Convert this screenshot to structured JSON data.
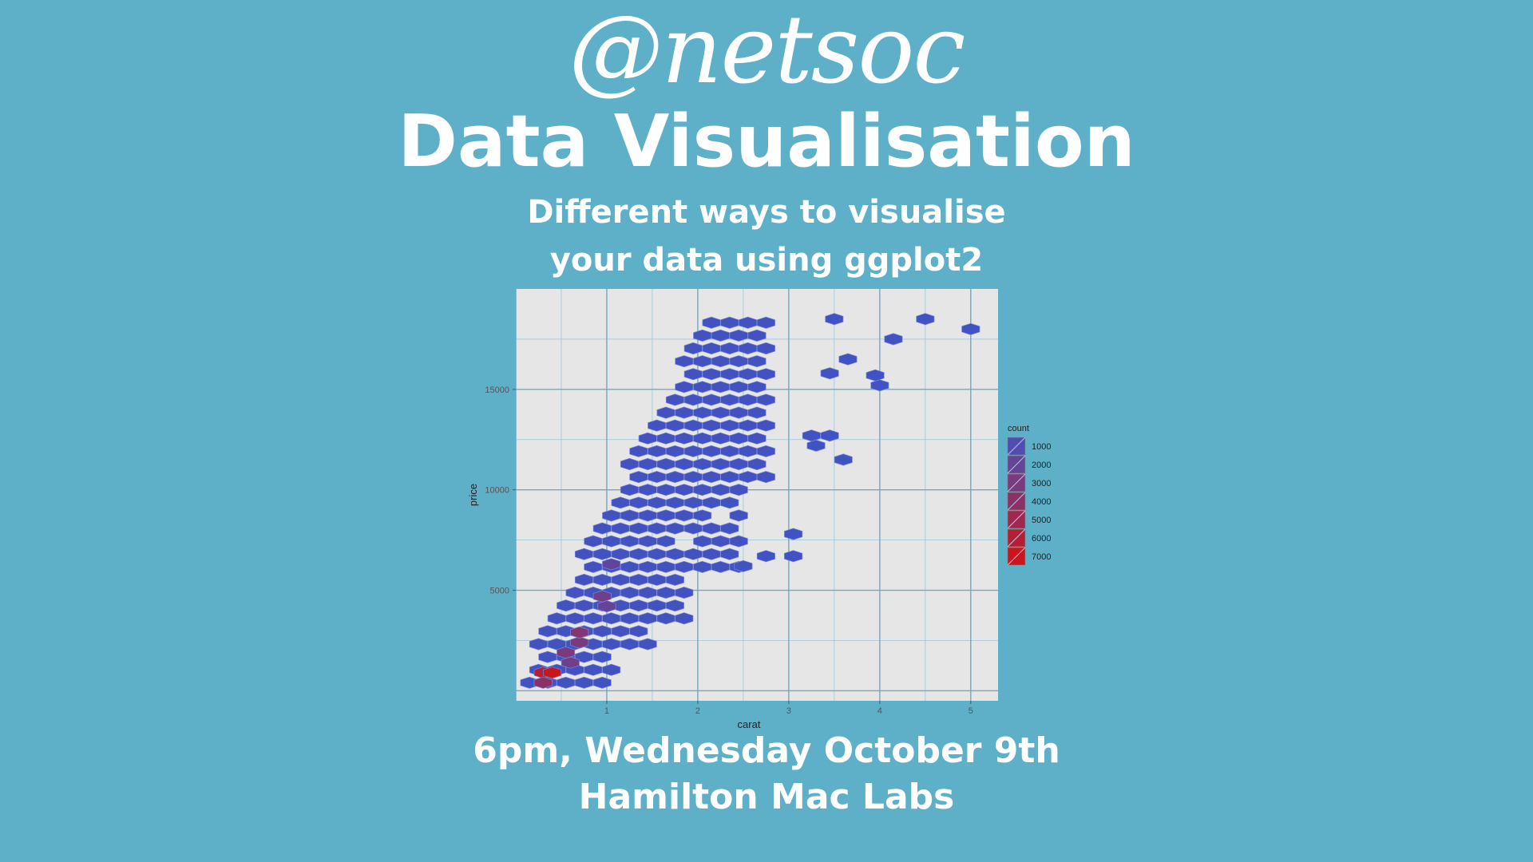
{
  "poster": {
    "logo": "@netsoc",
    "title": "Data Visualisation",
    "subtitle_line1": "Different ways to visualise",
    "subtitle_line2": "your data using ggplot2",
    "event_time": "6pm, Wednesday October 9th",
    "event_location": "Hamilton Mac Labs"
  },
  "colors": {
    "background": "#5eb0c8",
    "panel": "#e6e6e6",
    "low": "#3d55c8",
    "high": "#c8161b"
  },
  "chart_data": {
    "type": "heatmap",
    "subtype": "hexbin",
    "xlabel": "carat",
    "ylabel": "price",
    "xlim": [
      0,
      5.3
    ],
    "ylim": [
      -500,
      20000
    ],
    "xticks": [
      1,
      2,
      3,
      4,
      5
    ],
    "yticks": [
      5000,
      10000,
      15000
    ],
    "ytick_labels": [
      "5000",
      "10000",
      "15000"
    ],
    "grid": true,
    "legend": {
      "title": "count",
      "position": "right",
      "values": [
        1000,
        2000,
        3000,
        4000,
        5000,
        6000,
        7000
      ],
      "labels": [
        "1000",
        "2000",
        "3000",
        "4000",
        "5000",
        "6000",
        "7000"
      ]
    },
    "bins_description": "hexagonal bins of diamond price vs carat; dense region along lower diagonal",
    "outlier_bins": [
      {
        "x": 3.65,
        "y": 16500
      },
      {
        "x": 4.5,
        "y": 18500
      },
      {
        "x": 5.0,
        "y": 18000
      },
      {
        "x": 3.5,
        "y": 18500
      },
      {
        "x": 4.15,
        "y": 17500
      },
      {
        "x": 3.45,
        "y": 15800
      },
      {
        "x": 3.95,
        "y": 15700
      },
      {
        "x": 4.0,
        "y": 15200
      },
      {
        "x": 3.6,
        "y": 11500
      },
      {
        "x": 2.75,
        "y": 6700
      },
      {
        "x": 3.05,
        "y": 6700
      },
      {
        "x": 3.05,
        "y": 7800
      },
      {
        "x": 2.5,
        "y": 6200
      },
      {
        "x": 3.3,
        "y": 12200
      },
      {
        "x": 3.45,
        "y": 12700
      },
      {
        "x": 3.25,
        "y": 12700
      }
    ],
    "hot_bins": [
      {
        "x": 0.3,
        "y": 900,
        "count": 6000
      },
      {
        "x": 0.4,
        "y": 900,
        "count": 7000
      },
      {
        "x": 0.3,
        "y": 400,
        "count": 4000
      },
      {
        "x": 0.55,
        "y": 1900,
        "count": 3000
      },
      {
        "x": 0.7,
        "y": 2400,
        "count": 3000
      },
      {
        "x": 0.7,
        "y": 2900,
        "count": 3500
      },
      {
        "x": 0.95,
        "y": 4700,
        "count": 2500
      },
      {
        "x": 1.0,
        "y": 4200,
        "count": 2000
      },
      {
        "x": 0.6,
        "y": 1400,
        "count": 2500
      },
      {
        "x": 1.05,
        "y": 6300,
        "count": 1800
      }
    ]
  }
}
